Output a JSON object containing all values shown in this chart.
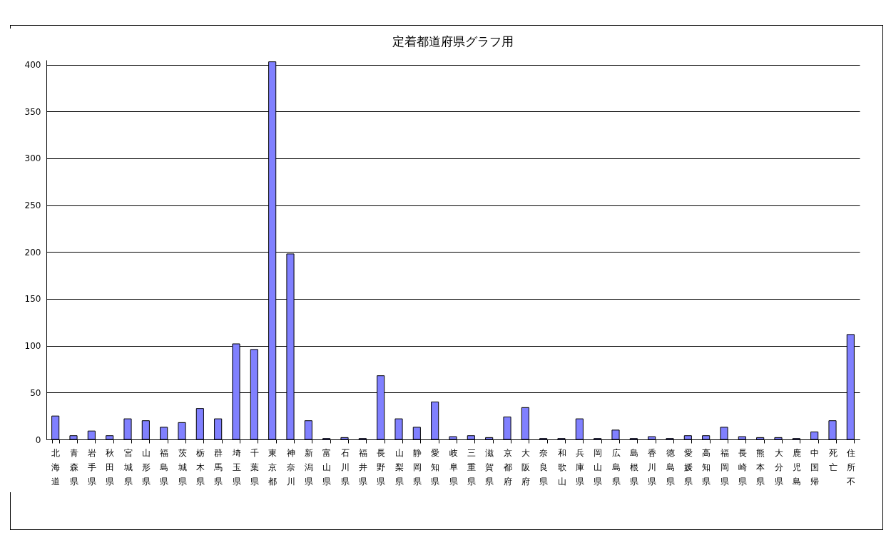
{
  "chart_data": {
    "type": "bar",
    "title": "定着都道府県グラフ用",
    "categories": [
      "北海道",
      "青森県",
      "岩手県",
      "秋田県",
      "宮城県",
      "山形県",
      "福島県",
      "茨城県",
      "栃木県",
      "群馬県",
      "埼玉県",
      "千葉県",
      "東京都",
      "神奈川",
      "新潟県",
      "富山県",
      "石川県",
      "福井県",
      "長野県",
      "山梨県",
      "静岡県",
      "愛知県",
      "岐阜県",
      "三重県",
      "滋賀県",
      "京都府",
      "大阪府",
      "奈良県",
      "和歌山",
      "兵庫県",
      "岡山県",
      "広島県",
      "島根県",
      "香川県",
      "徳島県",
      "愛媛県",
      "高知県",
      "福岡県",
      "長崎県",
      "熊本県",
      "大分県",
      "鹿児島",
      "中国帰",
      "死亡",
      "住所不"
    ],
    "values": [
      25,
      4,
      9,
      4,
      22,
      20,
      13,
      18,
      33,
      22,
      102,
      96,
      403,
      198,
      20,
      1,
      2,
      1,
      68,
      22,
      13,
      40,
      3,
      4,
      2,
      24,
      34,
      1,
      1,
      22,
      1,
      10,
      1,
      3,
      1,
      4,
      4,
      13,
      3,
      2,
      2,
      1,
      8,
      20,
      112
    ],
    "color": "#8080ff",
    "ylim": [
      0,
      405
    ],
    "yticks": [
      0,
      50,
      100,
      150,
      200,
      250,
      300,
      350,
      400
    ],
    "grid": "y"
  }
}
